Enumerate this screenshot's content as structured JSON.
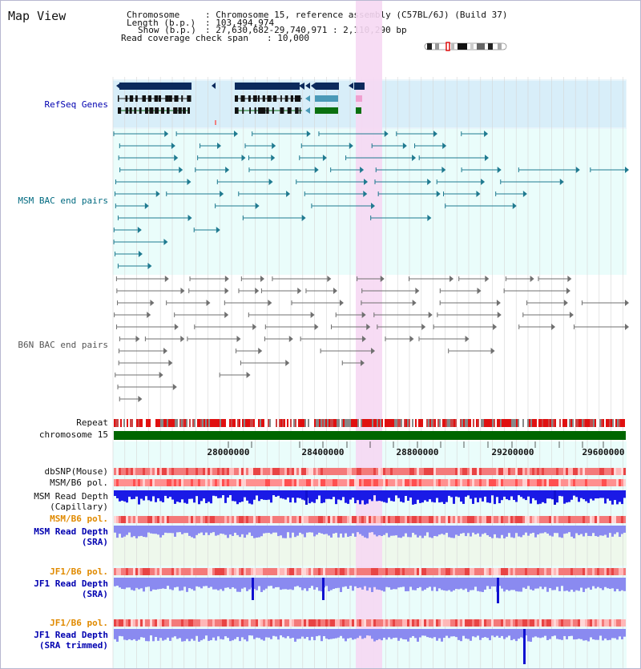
{
  "header": {
    "title": "Map View",
    "chromosome_key": "Chromosome",
    "chromosome_value": ": Chromosome 15, reference assembly (C57BL/6J) (Build 37)",
    "length_key": "Length (b.p.)",
    "length_value": ": 103,494,974",
    "show_key": "Show (b.p.)",
    "show_value": ": 27,630,682-29,740,971 : 2,110,290 bp",
    "coverage_key": "Read coverage check span",
    "coverage_value": ": 10,000"
  },
  "tracks": {
    "refseq_label": "RefSeq Genes",
    "msm_bac_label": "MSM BAC end pairs",
    "b6n_bac_label": "B6N BAC end pairs",
    "repeat_label": "Repeat",
    "chromosome_label": "chromosome 15",
    "dbsnp_label": "dbSNP(Mouse)",
    "msm_b6_pol_label": "MSM/B6 pol.",
    "msm_depth_cap_label1": "MSM Read Depth",
    "msm_depth_cap_label2": "(Capillary)",
    "msm_b6_pol_sra_label": "MSM/B6 pol.",
    "msm_depth_sra_label1": "MSM Read Depth",
    "msm_depth_sra_label2": "(SRA)",
    "jf1_pol_label": "JF1/B6 pol.",
    "jf1_depth_label1": "JF1 Read Depth",
    "jf1_depth_label2": "(SRA)",
    "jf1_pol2_label": "JF1/B6 pol.",
    "jf1_depth_trim_label1": "JF1 Read Depth",
    "jf1_depth_trim_label2": "(SRA trimmed)"
  },
  "axis": {
    "ticks": [
      "28000000",
      "28400000",
      "28800000",
      "29200000",
      "29600000"
    ]
  },
  "colors": {
    "refseq_label": "#0000b0",
    "msm_label": "#006a80",
    "b6n_label": "#555555",
    "orange_label": "#e08a00",
    "blue_label": "#0000b0",
    "highlight": "#f6d8f3",
    "gene_dark": "#0c2a5c",
    "gene_green": "#0a7010",
    "chrom_green": "#006600",
    "depth_blue": "#1a1ae6",
    "depth_light": "#8a8af0"
  }
}
